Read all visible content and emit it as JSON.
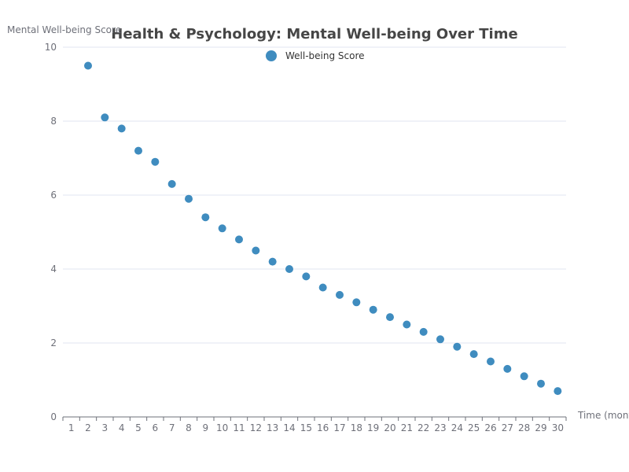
{
  "chart_data": {
    "type": "scatter",
    "title": "Health & Psychology: Mental Well-being Over Time",
    "xlabel": "Time (months)",
    "ylabel": "Mental Well-being Score",
    "xlim": [
      0.5,
      30.5
    ],
    "ylim": [
      0,
      10
    ],
    "x_ticks": [
      1,
      2,
      3,
      4,
      5,
      6,
      7,
      8,
      9,
      10,
      11,
      12,
      13,
      14,
      15,
      16,
      17,
      18,
      19,
      20,
      21,
      22,
      23,
      24,
      25,
      26,
      27,
      28,
      29,
      30
    ],
    "y_ticks": [
      0,
      2,
      4,
      6,
      8,
      10
    ],
    "grid": {
      "x": false,
      "y": true
    },
    "legend": {
      "position": "top-center",
      "entries": [
        "Well-being Score"
      ]
    },
    "series": [
      {
        "name": "Well-being Score",
        "color": "#3f8cbf",
        "points": [
          {
            "x": 2,
            "y": 9.5
          },
          {
            "x": 3,
            "y": 8.1
          },
          {
            "x": 4,
            "y": 7.8
          },
          {
            "x": 5,
            "y": 7.2
          },
          {
            "x": 6,
            "y": 6.9
          },
          {
            "x": 7,
            "y": 6.3
          },
          {
            "x": 8,
            "y": 5.9
          },
          {
            "x": 9,
            "y": 5.4
          },
          {
            "x": 10,
            "y": 5.1
          },
          {
            "x": 11,
            "y": 4.8
          },
          {
            "x": 12,
            "y": 4.5
          },
          {
            "x": 13,
            "y": 4.2
          },
          {
            "x": 14,
            "y": 4.0
          },
          {
            "x": 15,
            "y": 3.8
          },
          {
            "x": 16,
            "y": 3.5
          },
          {
            "x": 17,
            "y": 3.3
          },
          {
            "x": 18,
            "y": 3.1
          },
          {
            "x": 19,
            "y": 2.9
          },
          {
            "x": 20,
            "y": 2.7
          },
          {
            "x": 21,
            "y": 2.5
          },
          {
            "x": 22,
            "y": 2.3
          },
          {
            "x": 23,
            "y": 2.1
          },
          {
            "x": 24,
            "y": 1.9
          },
          {
            "x": 25,
            "y": 1.7
          },
          {
            "x": 26,
            "y": 1.5
          },
          {
            "x": 27,
            "y": 1.3
          },
          {
            "x": 28,
            "y": 1.1
          },
          {
            "x": 29,
            "y": 0.9
          },
          {
            "x": 30,
            "y": 0.7
          }
        ]
      }
    ]
  }
}
